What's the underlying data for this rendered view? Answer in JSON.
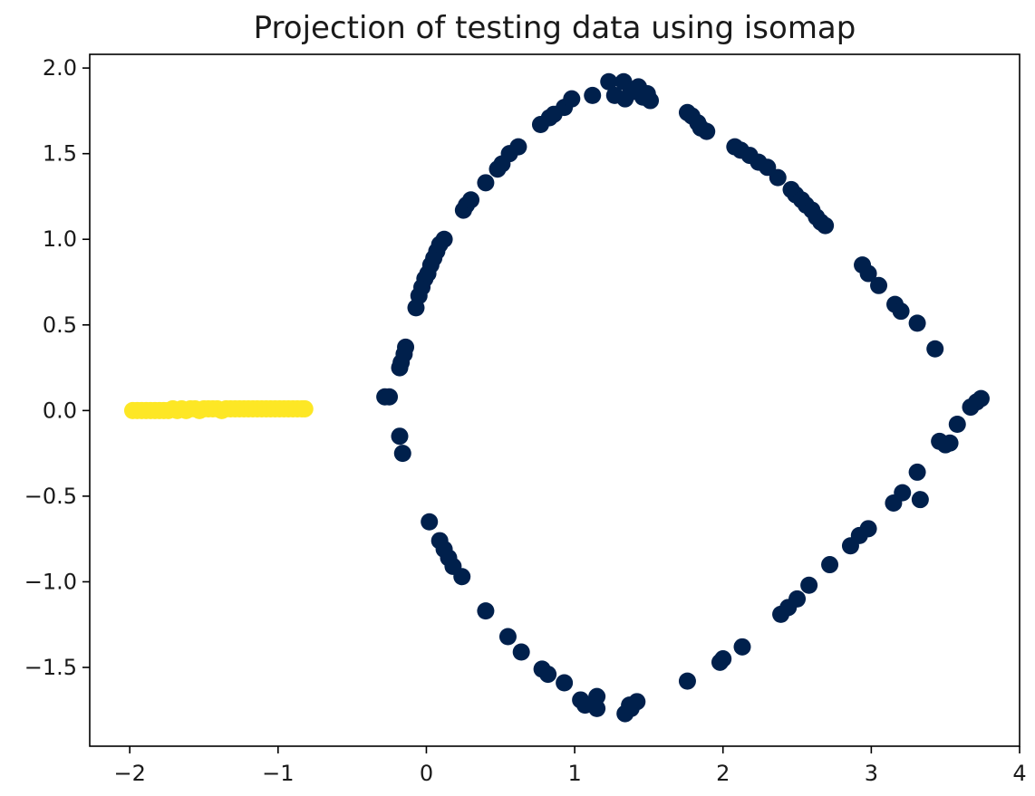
{
  "chart_data": {
    "type": "scatter",
    "title": "Projection of testing data using isomap",
    "xlabel": "",
    "ylabel": "",
    "xlim": [
      -2.27,
      4.0
    ],
    "ylim": [
      -1.96,
      2.08
    ],
    "x_ticks": [
      -2,
      -1,
      0,
      1,
      2,
      3,
      4
    ],
    "x_tick_labels": [
      "−2",
      "−1",
      "0",
      "1",
      "2",
      "3",
      "4"
    ],
    "y_ticks": [
      -1.5,
      -1.0,
      -0.5,
      0.0,
      0.5,
      1.0,
      1.5,
      2.0
    ],
    "y_tick_labels": [
      "−1.5",
      "−1.0",
      "−0.5",
      "0.0",
      "0.5",
      "1.0",
      "1.5",
      "2.0"
    ],
    "grid": false,
    "legend": "none",
    "series": [
      {
        "color": "#fde725",
        "marker": "circle",
        "points": [
          [
            -1.98,
            0.0
          ],
          [
            -1.95,
            0.0
          ],
          [
            -1.92,
            0.0
          ],
          [
            -1.89,
            0.0
          ],
          [
            -1.86,
            0.0
          ],
          [
            -1.83,
            0.0
          ],
          [
            -1.8,
            0.0
          ],
          [
            -1.77,
            0.0
          ],
          [
            -1.74,
            0.0
          ],
          [
            -1.71,
            0.01
          ],
          [
            -1.68,
            0.0
          ],
          [
            -1.65,
            0.01
          ],
          [
            -1.62,
            0.0
          ],
          [
            -1.59,
            0.01
          ],
          [
            -1.56,
            0.01
          ],
          [
            -1.53,
            0.0
          ],
          [
            -1.5,
            0.01
          ],
          [
            -1.47,
            0.01
          ],
          [
            -1.44,
            0.01
          ],
          [
            -1.41,
            0.01
          ],
          [
            -1.38,
            0.0
          ],
          [
            -1.35,
            0.01
          ],
          [
            -1.32,
            0.01
          ],
          [
            -1.29,
            0.01
          ],
          [
            -1.26,
            0.01
          ],
          [
            -1.23,
            0.01
          ],
          [
            -1.2,
            0.01
          ],
          [
            -1.17,
            0.01
          ],
          [
            -1.14,
            0.01
          ],
          [
            -1.11,
            0.01
          ],
          [
            -1.08,
            0.01
          ],
          [
            -1.05,
            0.01
          ],
          [
            -1.02,
            0.01
          ],
          [
            -0.99,
            0.01
          ],
          [
            -0.96,
            0.01
          ],
          [
            -0.93,
            0.01
          ],
          [
            -0.9,
            0.01
          ],
          [
            -0.87,
            0.01
          ],
          [
            -0.84,
            0.01
          ],
          [
            -0.82,
            0.01
          ]
        ]
      },
      {
        "color": "#00204c",
        "marker": "circle",
        "points": [
          [
            -0.28,
            0.08
          ],
          [
            -0.25,
            0.08
          ],
          [
            -0.18,
            -0.15
          ],
          [
            -0.16,
            -0.25
          ],
          [
            -0.18,
            0.25
          ],
          [
            -0.17,
            0.28
          ],
          [
            -0.15,
            0.33
          ],
          [
            -0.14,
            0.37
          ],
          [
            -0.07,
            0.6
          ],
          [
            -0.05,
            0.67
          ],
          [
            -0.03,
            0.72
          ],
          [
            -0.01,
            0.77
          ],
          [
            0.01,
            0.8
          ],
          [
            0.03,
            0.85
          ],
          [
            0.05,
            0.89
          ],
          [
            0.07,
            0.93
          ],
          [
            0.09,
            0.97
          ],
          [
            0.12,
            1.0
          ],
          [
            0.25,
            1.17
          ],
          [
            0.27,
            1.2
          ],
          [
            0.3,
            1.23
          ],
          [
            0.4,
            1.33
          ],
          [
            0.48,
            1.41
          ],
          [
            0.51,
            1.44
          ],
          [
            0.56,
            1.5
          ],
          [
            0.62,
            1.54
          ],
          [
            0.77,
            1.67
          ],
          [
            0.83,
            1.71
          ],
          [
            0.86,
            1.73
          ],
          [
            0.93,
            1.77
          ],
          [
            0.98,
            1.82
          ],
          [
            1.12,
            1.84
          ],
          [
            1.23,
            1.92
          ],
          [
            1.27,
            1.84
          ],
          [
            1.33,
            1.92
          ],
          [
            1.34,
            1.82
          ],
          [
            1.38,
            1.86
          ],
          [
            1.43,
            1.89
          ],
          [
            1.46,
            1.83
          ],
          [
            1.49,
            1.85
          ],
          [
            1.51,
            1.81
          ],
          [
            1.76,
            1.74
          ],
          [
            1.79,
            1.72
          ],
          [
            1.83,
            1.68
          ],
          [
            1.85,
            1.65
          ],
          [
            1.89,
            1.63
          ],
          [
            2.08,
            1.54
          ],
          [
            2.12,
            1.52
          ],
          [
            2.18,
            1.49
          ],
          [
            2.24,
            1.45
          ],
          [
            2.3,
            1.42
          ],
          [
            2.37,
            1.36
          ],
          [
            2.46,
            1.29
          ],
          [
            2.49,
            1.26
          ],
          [
            2.53,
            1.23
          ],
          [
            2.56,
            1.2
          ],
          [
            2.6,
            1.17
          ],
          [
            2.63,
            1.13
          ],
          [
            2.66,
            1.1
          ],
          [
            2.69,
            1.08
          ],
          [
            2.94,
            0.85
          ],
          [
            2.98,
            0.8
          ],
          [
            3.05,
            0.73
          ],
          [
            3.16,
            0.62
          ],
          [
            3.2,
            0.58
          ],
          [
            3.31,
            0.51
          ],
          [
            3.43,
            0.36
          ],
          [
            3.46,
            -0.18
          ],
          [
            3.5,
            -0.2
          ],
          [
            3.53,
            -0.19
          ],
          [
            3.58,
            -0.08
          ],
          [
            3.67,
            0.02
          ],
          [
            3.71,
            0.05
          ],
          [
            3.74,
            0.07
          ],
          [
            3.31,
            -0.36
          ],
          [
            3.33,
            -0.52
          ],
          [
            3.21,
            -0.48
          ],
          [
            3.15,
            -0.54
          ],
          [
            2.98,
            -0.69
          ],
          [
            2.92,
            -0.73
          ],
          [
            2.86,
            -0.79
          ],
          [
            2.72,
            -0.9
          ],
          [
            2.58,
            -1.02
          ],
          [
            2.5,
            -1.1
          ],
          [
            2.44,
            -1.15
          ],
          [
            2.39,
            -1.19
          ],
          [
            2.13,
            -1.38
          ],
          [
            1.98,
            -1.47
          ],
          [
            2.0,
            -1.45
          ],
          [
            1.76,
            -1.58
          ],
          [
            1.42,
            -1.7
          ],
          [
            1.38,
            -1.74
          ],
          [
            1.34,
            -1.77
          ],
          [
            1.37,
            -1.72
          ],
          [
            1.15,
            -1.67
          ],
          [
            1.15,
            -1.74
          ],
          [
            1.07,
            -1.72
          ],
          [
            1.04,
            -1.69
          ],
          [
            0.93,
            -1.59
          ],
          [
            0.82,
            -1.54
          ],
          [
            0.78,
            -1.51
          ],
          [
            0.64,
            -1.41
          ],
          [
            0.55,
            -1.32
          ],
          [
            0.4,
            -1.17
          ],
          [
            0.24,
            -0.97
          ],
          [
            0.18,
            -0.91
          ],
          [
            0.15,
            -0.86
          ],
          [
            0.12,
            -0.81
          ],
          [
            0.09,
            -0.76
          ],
          [
            0.02,
            -0.65
          ]
        ]
      }
    ]
  }
}
